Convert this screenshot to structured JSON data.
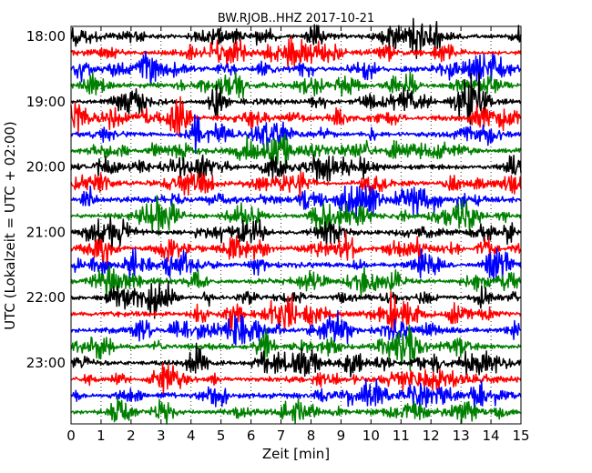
{
  "chart_data": {
    "type": "line",
    "title": "BW.RJOB..HHZ 2017-10-21",
    "xlabel": "Zeit  [min]",
    "ylabel": "UTC (Lokalzeit = UTC + 02:00)",
    "xlim": [
      0,
      15
    ],
    "x_ticks": [
      "0",
      "1",
      "2",
      "3",
      "4",
      "5",
      "6",
      "7",
      "8",
      "9",
      "10",
      "11",
      "12",
      "13",
      "14",
      "15"
    ],
    "y_tick_labels": [
      "18:00",
      "19:00",
      "20:00",
      "21:00",
      "22:00",
      "23:00"
    ],
    "y_tick_rows": [
      0,
      4,
      8,
      12,
      16,
      20
    ],
    "traces": [
      "18:00",
      "18:15",
      "18:30",
      "18:45",
      "19:00",
      "19:15",
      "19:30",
      "19:45",
      "20:00",
      "20:15",
      "20:30",
      "20:45",
      "21:00",
      "21:15",
      "21:30",
      "21:45",
      "22:00",
      "22:15",
      "22:30",
      "22:45",
      "23:00",
      "23:15",
      "23:30",
      "23:45"
    ],
    "trace_colors": [
      "#000000",
      "#ff0000",
      "#0000ff",
      "#008000"
    ],
    "vertical_grid": "dotted",
    "legend": "none"
  }
}
